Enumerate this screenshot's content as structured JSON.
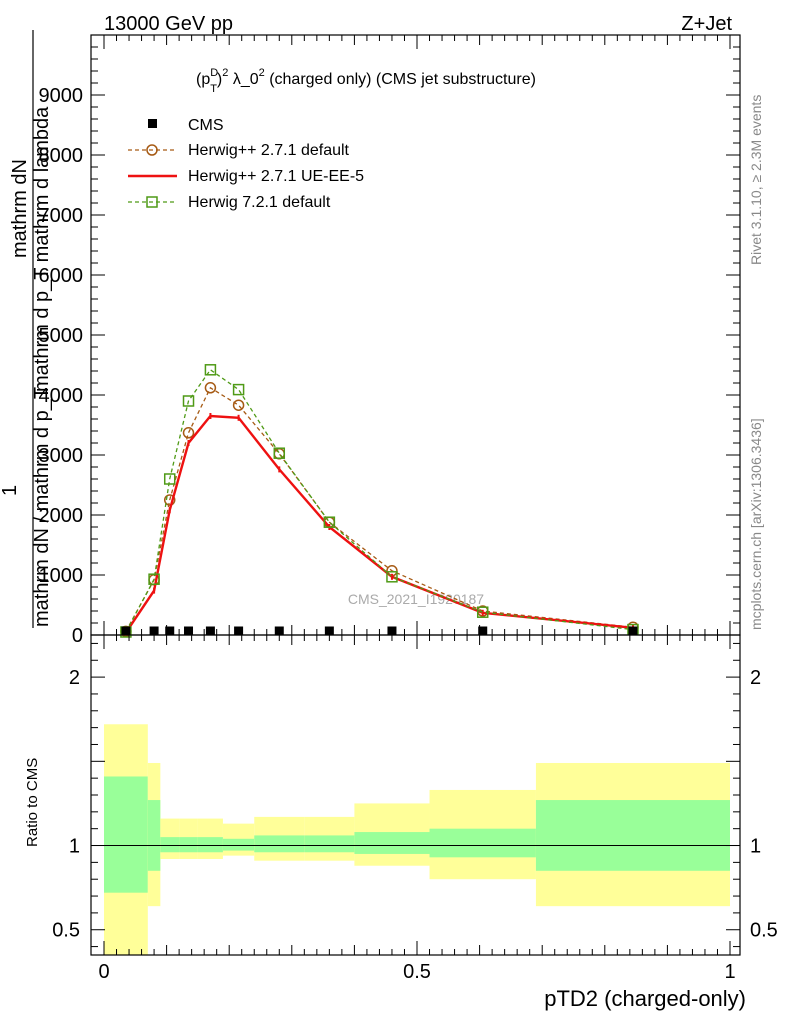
{
  "header": {
    "left": "13000 GeV pp",
    "right": "Z+Jet"
  },
  "side_labels": {
    "rivet": "Rivet 3.1.10, ≥ 2.3M events",
    "mcplots": "mcplots.cern.ch [arXiv:1306.3436]"
  },
  "watermark": "CMS_2021_I1920187",
  "colors": {
    "cms": "#000000",
    "herwig_default": "#a65a14",
    "herwig_ueee5": "#ee1111",
    "herwig7": "#4f9a16",
    "band_inner": "#99ff99",
    "band_outer": "#ffff99"
  },
  "chart_data": [
    {
      "type": "line",
      "panel": "main",
      "title": "(p_T^D)^2 λ_0^2 (charged only) (CMS jet substructure)",
      "title_parts": {
        "a": "(p",
        "sup1": "D",
        "sub1": "T",
        "b": ")",
        "sup2": "2",
        "c": " λ_0",
        "sup3": "2",
        "d": " (charged only) (CMS jet substructure)"
      },
      "ylabel_top": "mathrm dN",
      "ylabel_mid": "mathrm d p_T mathrm d lambda",
      "ylabel_one": "1",
      "ylabel_bottom": "mathrm dN / mathrm d p_T",
      "xlim": [
        0,
        1
      ],
      "ylim": [
        0,
        10000
      ],
      "ytick_labels": [
        {
          "v": 0,
          "label": "0"
        },
        {
          "v": 1000,
          "label": "1000"
        },
        {
          "v": 2000,
          "label": "2000"
        },
        {
          "v": 3000,
          "label": "3000"
        },
        {
          "v": 4000,
          "label": "4000"
        },
        {
          "v": 5000,
          "label": "5000"
        },
        {
          "v": 6000,
          "label": "6000"
        },
        {
          "v": 7000,
          "label": "7000"
        },
        {
          "v": 8000,
          "label": "8000"
        },
        {
          "v": 9000,
          "label": "9000"
        }
      ],
      "bin_edges": [
        0,
        0.07,
        0.09,
        0.12,
        0.15,
        0.19,
        0.24,
        0.32,
        0.4,
        0.52,
        0.69,
        1.0
      ],
      "cms_x": [
        0.035,
        0.08,
        0.105,
        0.135,
        0.17,
        0.215,
        0.28,
        0.36,
        0.46,
        0.605,
        0.845
      ],
      "cms_values": [
        5,
        5,
        5,
        5,
        5,
        5,
        5,
        5,
        5,
        5,
        5
      ],
      "legend": [
        {
          "name": "CMS",
          "marker": "square"
        },
        {
          "name": "Herwig++ 2.7.1 default",
          "marker": "circle",
          "style": "dashed"
        },
        {
          "name": "Herwig++ 2.7.1 UE-EE-5",
          "marker": "none",
          "style": "solid"
        },
        {
          "name": "Herwig 7.2.1 default",
          "marker": "square-open",
          "style": "dashed"
        }
      ],
      "series": [
        {
          "name": "Herwig++ 2.7.1 default",
          "x": [
            0.035,
            0.08,
            0.105,
            0.135,
            0.17,
            0.215,
            0.28,
            0.36,
            0.46,
            0.605,
            0.845
          ],
          "values": [
            60,
            920,
            2250,
            3370,
            4120,
            3830,
            3020,
            1880,
            1070,
            400,
            130
          ]
        },
        {
          "name": "Herwig++ 2.7.1 UE-EE-5",
          "x": [
            0.035,
            0.08,
            0.105,
            0.135,
            0.17,
            0.215,
            0.28,
            0.36,
            0.46,
            0.605,
            0.845
          ],
          "values": [
            40,
            740,
            2080,
            3200,
            3650,
            3620,
            2760,
            1800,
            970,
            370,
            120
          ]
        },
        {
          "name": "Herwig 7.2.1 default",
          "x": [
            0.035,
            0.08,
            0.105,
            0.135,
            0.17,
            0.215,
            0.28,
            0.36,
            0.46,
            0.605,
            0.845
          ],
          "values": [
            50,
            930,
            2600,
            3900,
            4420,
            4090,
            3030,
            1880,
            970,
            380,
            90
          ]
        }
      ]
    },
    {
      "type": "area",
      "panel": "ratio",
      "ylabel": "Ratio to CMS",
      "xlabel": "pTD2 (charged-only)",
      "xlim": [
        0,
        1
      ],
      "ylim": [
        0.35,
        2.25
      ],
      "xtick_labels": [
        {
          "v": 0,
          "label": "0"
        },
        {
          "v": 0.5,
          "label": "0.5"
        },
        {
          "v": 1,
          "label": "1"
        }
      ],
      "ytick_labels": [
        {
          "v": 0.5,
          "label": "0.5"
        },
        {
          "v": 1,
          "label": "1"
        },
        {
          "v": 2,
          "label": "2"
        }
      ],
      "bin_edges": [
        0,
        0.07,
        0.09,
        0.12,
        0.15,
        0.19,
        0.24,
        0.32,
        0.4,
        0.52,
        0.69,
        1.0
      ],
      "inner_low": [
        0.72,
        0.85,
        0.96,
        0.96,
        0.96,
        0.97,
        0.96,
        0.96,
        0.95,
        0.93,
        0.85
      ],
      "inner_high": [
        1.41,
        1.27,
        1.05,
        1.05,
        1.05,
        1.04,
        1.06,
        1.06,
        1.08,
        1.1,
        1.27
      ],
      "outer_low": [
        0.35,
        0.64,
        0.92,
        0.92,
        0.92,
        0.94,
        0.91,
        0.91,
        0.88,
        0.8,
        0.64
      ],
      "outer_high": [
        1.72,
        1.49,
        1.16,
        1.16,
        1.16,
        1.13,
        1.17,
        1.17,
        1.25,
        1.33,
        1.49
      ]
    }
  ]
}
